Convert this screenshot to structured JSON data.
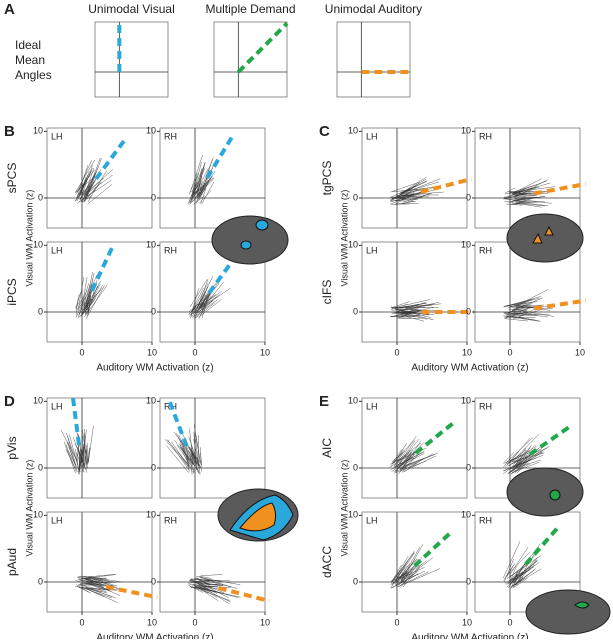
{
  "panel_a": {
    "label": "A",
    "row_label": [
      "Ideal",
      "Mean",
      "Angles"
    ],
    "models": [
      {
        "title": "Unimodal Visual",
        "color": "#29a8dc",
        "mean_angle": 90
      },
      {
        "title": "Multiple Demand",
        "color": "#22a84a",
        "mean_angle": 45
      },
      {
        "title": "Unimodal Auditory",
        "color": "#f0901e",
        "mean_angle": 0
      }
    ]
  },
  "panels": [
    {
      "label": "B",
      "x_label": "Auditory WM Activation (z)",
      "y_label": "Visual WM Activation (z)",
      "xlim": [
        -5,
        10
      ],
      "ylim": [
        -4.5,
        10.5
      ],
      "xticks": [
        0,
        10
      ],
      "yticks": [
        0,
        10
      ],
      "rows": [
        {
          "region": "sPCS",
          "color": "#29a8dc",
          "plots": [
            {
              "hemi": "LH",
              "mean_angle": 55
            },
            {
              "hemi": "RH",
              "mean_angle": 60
            }
          ]
        },
        {
          "region": "iPCS",
          "color": "#29a8dc",
          "plots": [
            {
              "hemi": "LH",
              "mean_angle": 66
            },
            {
              "hemi": "RH",
              "mean_angle": 55
            }
          ]
        }
      ]
    },
    {
      "label": "C",
      "x_label": "Auditory WM Activation (z)",
      "y_label": "Visual WM Activation (z)",
      "xlim": [
        -5,
        10
      ],
      "ylim": [
        -4.5,
        10.5
      ],
      "xticks": [
        0,
        10
      ],
      "yticks": [
        0,
        10
      ],
      "rows": [
        {
          "region": "tgPCS",
          "color": "#f0901e",
          "plots": [
            {
              "hemi": "LH",
              "mean_angle": 15
            },
            {
              "hemi": "RH",
              "mean_angle": 11
            }
          ]
        },
        {
          "region": "cIFS",
          "color": "#f0901e",
          "plots": [
            {
              "hemi": "LH",
              "mean_angle": 0
            },
            {
              "hemi": "RH",
              "mean_angle": 9
            }
          ]
        }
      ]
    },
    {
      "label": "D",
      "x_label": "Auditory WM Activation (z)",
      "y_label": "Visual WM Activation (z)",
      "xlim": [
        -5,
        10
      ],
      "ylim": [
        -4.5,
        10.5
      ],
      "xticks": [
        0,
        10
      ],
      "yticks": [
        0,
        10
      ],
      "rows": [
        {
          "region": "pVis",
          "color": "#29a8dc",
          "plots": [
            {
              "hemi": "LH",
              "mean_angle": 97
            },
            {
              "hemi": "RH",
              "mean_angle": 110
            }
          ]
        },
        {
          "region": "pAud",
          "color": "#f0901e",
          "plots": [
            {
              "hemi": "LH",
              "mean_angle": -12
            },
            {
              "hemi": "RH",
              "mean_angle": -15
            }
          ]
        }
      ]
    },
    {
      "label": "E",
      "x_label": "Auditory WM Activation (z)",
      "y_label": "Visual WM Activation (z)",
      "xlim": [
        -5,
        10
      ],
      "ylim": [
        -4.5,
        10.5
      ],
      "xticks": [
        0,
        10
      ],
      "yticks": [
        0,
        10
      ],
      "rows": [
        {
          "region": "AIC",
          "color": "#22a84a",
          "plots": [
            {
              "hemi": "LH",
              "mean_angle": 40
            },
            {
              "hemi": "RH",
              "mean_angle": 36
            }
          ]
        },
        {
          "region": "dACC",
          "color": "#22a84a",
          "plots": [
            {
              "hemi": "LH",
              "mean_angle": 44
            },
            {
              "hemi": "RH",
              "mean_angle": 50
            }
          ]
        }
      ]
    }
  ]
}
